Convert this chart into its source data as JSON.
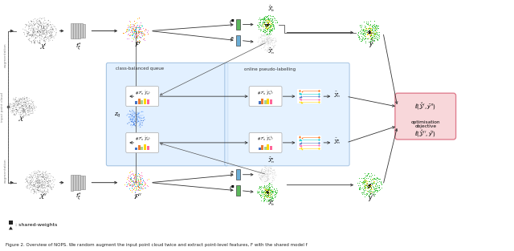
{
  "fig_width": 6.4,
  "fig_height": 3.13,
  "dpi": 100,
  "bg_color": "#ffffff",
  "caption": "Figure 2. Overview of NOPS. We random augment the input point cloud twice and extract point-level features, F with the shared model f",
  "blue_box_color": "#ddeeff",
  "pink_box_color": "#f8d7da",
  "encoder_color": "#c8c8c8",
  "head_green_color": "#5cb85c",
  "head_blue_color": "#6baed6",
  "class_balanced_queue": "class-balanced queue",
  "online_pseudo_labelling": "online pseudo-labelling",
  "optimisation_objective": "optimisation\nobjective",
  "shared_weights": ": shared-weights"
}
